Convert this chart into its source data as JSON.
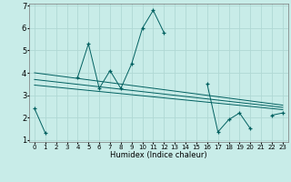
{
  "xlabel": "Humidex (Indice chaleur)",
  "bg_color": "#c8ece8",
  "grid_color": "#b0d8d4",
  "line_color": "#006060",
  "x_data": [
    0,
    1,
    2,
    3,
    4,
    5,
    6,
    7,
    8,
    9,
    10,
    11,
    12,
    13,
    14,
    15,
    16,
    17,
    18,
    19,
    20,
    21,
    22,
    23
  ],
  "y_main": [
    2.4,
    1.3,
    null,
    null,
    3.8,
    5.3,
    3.3,
    4.1,
    3.3,
    4.4,
    6.0,
    6.8,
    5.8,
    null,
    null,
    null,
    3.5,
    1.35,
    1.9,
    2.2,
    1.5,
    null,
    2.1,
    2.2
  ],
  "reg_lines": [
    {
      "x": [
        0,
        23
      ],
      "y": [
        4.0,
        2.55
      ]
    },
    {
      "x": [
        0,
        23
      ],
      "y": [
        3.7,
        2.45
      ]
    },
    {
      "x": [
        0,
        23
      ],
      "y": [
        3.45,
        2.35
      ]
    }
  ],
  "ylim": [
    0.9,
    7.1
  ],
  "xlim": [
    -0.5,
    23.5
  ],
  "yticks": [
    1,
    2,
    3,
    4,
    5,
    6,
    7
  ],
  "xticks": [
    0,
    1,
    2,
    3,
    4,
    5,
    6,
    7,
    8,
    9,
    10,
    11,
    12,
    13,
    14,
    15,
    16,
    17,
    18,
    19,
    20,
    21,
    22,
    23
  ],
  "tick_fontsize": 5,
  "xlabel_fontsize": 6
}
